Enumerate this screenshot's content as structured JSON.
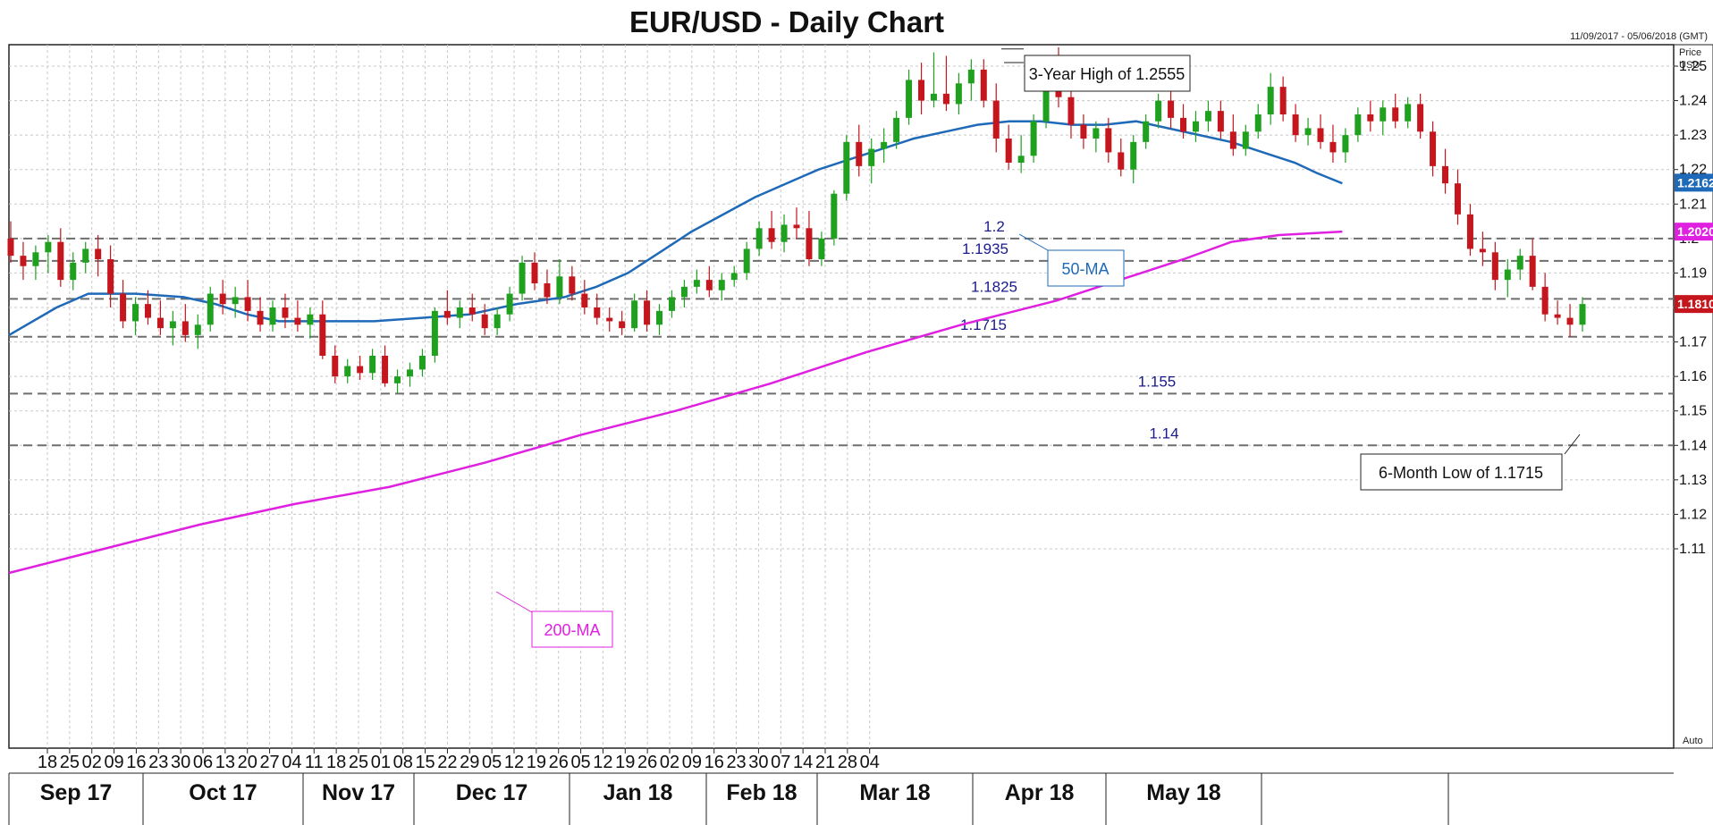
{
  "chart_data": {
    "type": "candlestick",
    "title": "EUR/USD - Daily Chart",
    "date_range": "11/09/2017 - 05/06/2018 (GMT)",
    "y_axis_title": [
      "Price",
      "USD"
    ],
    "ylim": [
      1.1,
      1.26
    ],
    "y_ticks": [
      "1.25",
      "1.24",
      "1.23",
      "1.22",
      "1.21",
      "1.2",
      "1.19",
      "1.18",
      "1.17",
      "1.16",
      "1.15",
      "1.14",
      "1.13",
      "1.12",
      "1.11"
    ],
    "x_day_ticks": [
      "18",
      "25",
      "02",
      "09",
      "16",
      "23",
      "30",
      "06",
      "13",
      "20",
      "27",
      "04",
      "11",
      "18",
      "25",
      "01",
      "08",
      "15",
      "22",
      "29",
      "05",
      "12",
      "19",
      "26",
      "05",
      "12",
      "19",
      "26",
      "02",
      "09",
      "16",
      "23",
      "30",
      "07",
      "14",
      "21",
      "28",
      "04"
    ],
    "x_months": [
      "Sep 17",
      "Oct 17",
      "Nov 17",
      "Dec 17",
      "Jan 18",
      "Feb 18",
      "Mar 18",
      "Apr 18",
      "May 18"
    ],
    "auto_label": "Auto",
    "horizontal_levels": [
      {
        "value": 1.2,
        "label": "1.2"
      },
      {
        "value": 1.1935,
        "label": "1.1935"
      },
      {
        "value": 1.1825,
        "label": "1.1825"
      },
      {
        "value": 1.1715,
        "label": "1.1715"
      },
      {
        "value": 1.155,
        "label": "1.155"
      },
      {
        "value": 1.14,
        "label": "1.14"
      }
    ],
    "annotations": [
      {
        "text": "3-Year High of 1.2555",
        "value": 1.2555
      },
      {
        "text": "6-Month Low of 1.1715",
        "value": 1.1715
      }
    ],
    "moving_averages": [
      {
        "name": "50-MA",
        "color": "#1f6ab8",
        "last_value": "1.2162",
        "points": [
          [
            0,
            1.172
          ],
          [
            15,
            1.18
          ],
          [
            25,
            1.184
          ],
          [
            40,
            1.184
          ],
          [
            55,
            1.183
          ],
          [
            65,
            1.181
          ],
          [
            75,
            1.178
          ],
          [
            85,
            1.176
          ],
          [
            100,
            1.176
          ],
          [
            115,
            1.176
          ],
          [
            130,
            1.177
          ],
          [
            145,
            1.178
          ],
          [
            160,
            1.181
          ],
          [
            175,
            1.183
          ],
          [
            185,
            1.186
          ],
          [
            195,
            1.19
          ],
          [
            205,
            1.196
          ],
          [
            215,
            1.202
          ],
          [
            225,
            1.207
          ],
          [
            235,
            1.212
          ],
          [
            245,
            1.216
          ],
          [
            255,
            1.22
          ],
          [
            265,
            1.223
          ],
          [
            275,
            1.226
          ],
          [
            285,
            1.229
          ],
          [
            295,
            1.231
          ],
          [
            305,
            1.233
          ],
          [
            315,
            1.234
          ],
          [
            325,
            1.234
          ],
          [
            335,
            1.233
          ],
          [
            345,
            1.233
          ],
          [
            355,
            1.234
          ],
          [
            365,
            1.232
          ],
          [
            375,
            1.23
          ],
          [
            385,
            1.228
          ],
          [
            395,
            1.225
          ],
          [
            405,
            1.222
          ],
          [
            412,
            1.219
          ],
          [
            420,
            1.216
          ]
        ]
      },
      {
        "name": "200-MA",
        "color": "#e020e0",
        "last_value": "1.2020",
        "points": [
          [
            0,
            1.103
          ],
          [
            30,
            1.11
          ],
          [
            60,
            1.117
          ],
          [
            90,
            1.123
          ],
          [
            120,
            1.128
          ],
          [
            150,
            1.135
          ],
          [
            180,
            1.143
          ],
          [
            210,
            1.15
          ],
          [
            240,
            1.158
          ],
          [
            270,
            1.167
          ],
          [
            300,
            1.175
          ],
          [
            330,
            1.182
          ],
          [
            350,
            1.188
          ],
          [
            370,
            1.194
          ],
          [
            385,
            1.199
          ],
          [
            400,
            1.201
          ],
          [
            420,
            1.202
          ]
        ]
      }
    ],
    "current_price": "1.1810",
    "candles": [
      [
        1.2,
        1.205,
        1.193,
        1.195
      ],
      [
        1.195,
        1.199,
        1.188,
        1.192
      ],
      [
        1.192,
        1.198,
        1.188,
        1.196
      ],
      [
        1.196,
        1.201,
        1.19,
        1.199
      ],
      [
        1.199,
        1.203,
        1.186,
        1.188
      ],
      [
        1.188,
        1.196,
        1.185,
        1.193
      ],
      [
        1.193,
        1.199,
        1.19,
        1.197
      ],
      [
        1.197,
        1.201,
        1.189,
        1.194
      ],
      [
        1.194,
        1.198,
        1.18,
        1.184
      ],
      [
        1.184,
        1.188,
        1.174,
        1.176
      ],
      [
        1.176,
        1.183,
        1.172,
        1.181
      ],
      [
        1.181,
        1.185,
        1.175,
        1.177
      ],
      [
        1.177,
        1.182,
        1.172,
        1.174
      ],
      [
        1.174,
        1.179,
        1.169,
        1.176
      ],
      [
        1.176,
        1.181,
        1.17,
        1.172
      ],
      [
        1.172,
        1.178,
        1.168,
        1.175
      ],
      [
        1.175,
        1.186,
        1.173,
        1.184
      ],
      [
        1.184,
        1.188,
        1.178,
        1.181
      ],
      [
        1.181,
        1.186,
        1.177,
        1.183
      ],
      [
        1.183,
        1.188,
        1.176,
        1.179
      ],
      [
        1.179,
        1.183,
        1.173,
        1.175
      ],
      [
        1.175,
        1.182,
        1.173,
        1.18
      ],
      [
        1.18,
        1.184,
        1.174,
        1.177
      ],
      [
        1.177,
        1.182,
        1.173,
        1.175
      ],
      [
        1.175,
        1.18,
        1.171,
        1.178
      ],
      [
        1.178,
        1.182,
        1.165,
        1.166
      ],
      [
        1.166,
        1.169,
        1.158,
        1.16
      ],
      [
        1.16,
        1.165,
        1.158,
        1.163
      ],
      [
        1.163,
        1.166,
        1.159,
        1.161
      ],
      [
        1.161,
        1.168,
        1.159,
        1.166
      ],
      [
        1.166,
        1.169,
        1.157,
        1.158
      ],
      [
        1.158,
        1.162,
        1.155,
        1.16
      ],
      [
        1.16,
        1.164,
        1.157,
        1.162
      ],
      [
        1.162,
        1.168,
        1.16,
        1.166
      ],
      [
        1.166,
        1.18,
        1.164,
        1.179
      ],
      [
        1.179,
        1.185,
        1.175,
        1.177
      ],
      [
        1.177,
        1.182,
        1.174,
        1.18
      ],
      [
        1.18,
        1.184,
        1.176,
        1.178
      ],
      [
        1.178,
        1.181,
        1.172,
        1.174
      ],
      [
        1.174,
        1.18,
        1.172,
        1.178
      ],
      [
        1.178,
        1.186,
        1.176,
        1.184
      ],
      [
        1.184,
        1.195,
        1.182,
        1.193
      ],
      [
        1.193,
        1.196,
        1.185,
        1.187
      ],
      [
        1.187,
        1.191,
        1.181,
        1.183
      ],
      [
        1.183,
        1.194,
        1.181,
        1.189
      ],
      [
        1.189,
        1.192,
        1.182,
        1.184
      ],
      [
        1.184,
        1.188,
        1.178,
        1.18
      ],
      [
        1.18,
        1.184,
        1.175,
        1.177
      ],
      [
        1.177,
        1.18,
        1.173,
        1.176
      ],
      [
        1.176,
        1.179,
        1.172,
        1.174
      ],
      [
        1.174,
        1.184,
        1.173,
        1.182
      ],
      [
        1.182,
        1.185,
        1.173,
        1.175
      ],
      [
        1.175,
        1.181,
        1.172,
        1.179
      ],
      [
        1.179,
        1.185,
        1.177,
        1.183
      ],
      [
        1.183,
        1.188,
        1.18,
        1.186
      ],
      [
        1.186,
        1.191,
        1.184,
        1.188
      ],
      [
        1.188,
        1.192,
        1.183,
        1.185
      ],
      [
        1.185,
        1.19,
        1.182,
        1.188
      ],
      [
        1.188,
        1.192,
        1.186,
        1.19
      ],
      [
        1.19,
        1.199,
        1.188,
        1.197
      ],
      [
        1.197,
        1.205,
        1.195,
        1.203
      ],
      [
        1.203,
        1.208,
        1.197,
        1.199
      ],
      [
        1.199,
        1.207,
        1.196,
        1.204
      ],
      [
        1.204,
        1.209,
        1.2,
        1.203
      ],
      [
        1.203,
        1.208,
        1.192,
        1.194
      ],
      [
        1.194,
        1.202,
        1.192,
        1.2
      ],
      [
        1.2,
        1.214,
        1.198,
        1.213
      ],
      [
        1.213,
        1.23,
        1.211,
        1.228
      ],
      [
        1.228,
        1.233,
        1.218,
        1.221
      ],
      [
        1.221,
        1.229,
        1.216,
        1.226
      ],
      [
        1.226,
        1.232,
        1.222,
        1.228
      ],
      [
        1.228,
        1.237,
        1.226,
        1.235
      ],
      [
        1.235,
        1.249,
        1.233,
        1.246
      ],
      [
        1.246,
        1.251,
        1.236,
        1.24
      ],
      [
        1.24,
        1.254,
        1.238,
        1.242
      ],
      [
        1.242,
        1.253,
        1.237,
        1.239
      ],
      [
        1.239,
        1.248,
        1.236,
        1.245
      ],
      [
        1.245,
        1.252,
        1.24,
        1.249
      ],
      [
        1.249,
        1.252,
        1.238,
        1.24
      ],
      [
        1.24,
        1.245,
        1.225,
        1.229
      ],
      [
        1.229,
        1.233,
        1.22,
        1.222
      ],
      [
        1.222,
        1.23,
        1.219,
        1.224
      ],
      [
        1.224,
        1.236,
        1.222,
        1.234
      ],
      [
        1.234,
        1.247,
        1.232,
        1.245
      ],
      [
        1.245,
        1.2555,
        1.238,
        1.241
      ],
      [
        1.241,
        1.244,
        1.229,
        1.233
      ],
      [
        1.233,
        1.236,
        1.226,
        1.229
      ],
      [
        1.229,
        1.234,
        1.225,
        1.232
      ],
      [
        1.232,
        1.235,
        1.222,
        1.225
      ],
      [
        1.225,
        1.229,
        1.218,
        1.22
      ],
      [
        1.22,
        1.23,
        1.216,
        1.228
      ],
      [
        1.228,
        1.236,
        1.226,
        1.234
      ],
      [
        1.234,
        1.242,
        1.232,
        1.24
      ],
      [
        1.24,
        1.244,
        1.232,
        1.235
      ],
      [
        1.235,
        1.239,
        1.229,
        1.231
      ],
      [
        1.231,
        1.237,
        1.228,
        1.234
      ],
      [
        1.234,
        1.24,
        1.231,
        1.237
      ],
      [
        1.237,
        1.24,
        1.229,
        1.231
      ],
      [
        1.231,
        1.236,
        1.224,
        1.226
      ],
      [
        1.226,
        1.233,
        1.224,
        1.231
      ],
      [
        1.231,
        1.239,
        1.229,
        1.236
      ],
      [
        1.236,
        1.248,
        1.233,
        1.244
      ],
      [
        1.244,
        1.247,
        1.234,
        1.236
      ],
      [
        1.236,
        1.239,
        1.228,
        1.23
      ],
      [
        1.23,
        1.235,
        1.227,
        1.232
      ],
      [
        1.232,
        1.236,
        1.226,
        1.228
      ],
      [
        1.228,
        1.233,
        1.222,
        1.225
      ],
      [
        1.225,
        1.232,
        1.222,
        1.23
      ],
      [
        1.23,
        1.238,
        1.228,
        1.236
      ],
      [
        1.236,
        1.24,
        1.231,
        1.234
      ],
      [
        1.234,
        1.24,
        1.23,
        1.238
      ],
      [
        1.238,
        1.242,
        1.232,
        1.234
      ],
      [
        1.234,
        1.241,
        1.232,
        1.239
      ],
      [
        1.239,
        1.242,
        1.229,
        1.231
      ],
      [
        1.231,
        1.234,
        1.218,
        1.221
      ],
      [
        1.221,
        1.226,
        1.213,
        1.216
      ],
      [
        1.216,
        1.22,
        1.204,
        1.207
      ],
      [
        1.207,
        1.21,
        1.195,
        1.197
      ],
      [
        1.197,
        1.202,
        1.192,
        1.196
      ],
      [
        1.196,
        1.199,
        1.185,
        1.188
      ],
      [
        1.188,
        1.194,
        1.183,
        1.191
      ],
      [
        1.191,
        1.197,
        1.188,
        1.195
      ],
      [
        1.195,
        1.2,
        1.185,
        1.186
      ],
      [
        1.186,
        1.19,
        1.176,
        1.178
      ],
      [
        1.178,
        1.182,
        1.175,
        1.177
      ],
      [
        1.177,
        1.181,
        1.1715,
        1.175
      ],
      [
        1.175,
        1.183,
        1.173,
        1.181
      ]
    ]
  }
}
